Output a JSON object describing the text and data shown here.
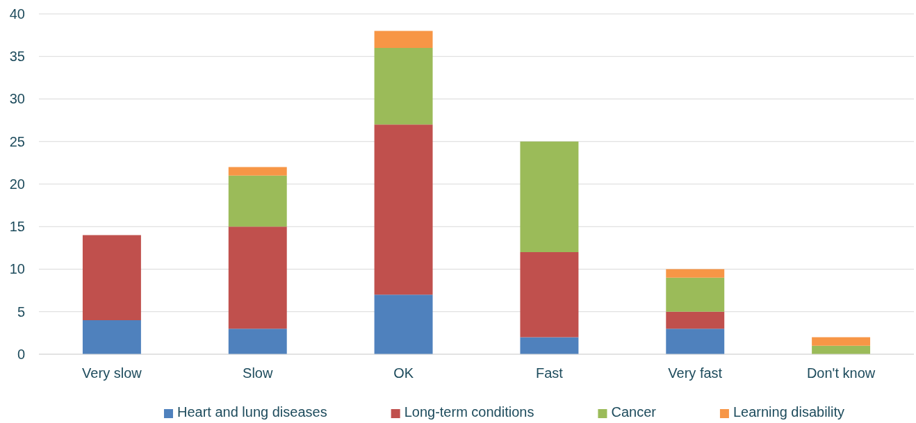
{
  "chart_data": {
    "type": "bar",
    "stacked": true,
    "categories": [
      "Very slow",
      "Slow",
      "OK",
      "Fast",
      "Very fast",
      "Don't know"
    ],
    "series": [
      {
        "name": "Heart and lung diseases",
        "color": "#4f81bd",
        "values": [
          4,
          3,
          7,
          2,
          3,
          0
        ]
      },
      {
        "name": "Long-term conditions",
        "color": "#c0504d",
        "values": [
          10,
          12,
          20,
          10,
          2,
          0
        ]
      },
      {
        "name": "Cancer",
        "color": "#9bbb59",
        "values": [
          0,
          6,
          9,
          13,
          4,
          1
        ]
      },
      {
        "name": "Learning disability",
        "color": "#f79646",
        "values": [
          0,
          1,
          2,
          0,
          1,
          1
        ]
      }
    ],
    "ylim": [
      0,
      40
    ],
    "yticks": [
      0,
      5,
      10,
      15,
      20,
      25,
      30,
      35,
      40
    ],
    "grid": "y",
    "legend": "bottom"
  }
}
